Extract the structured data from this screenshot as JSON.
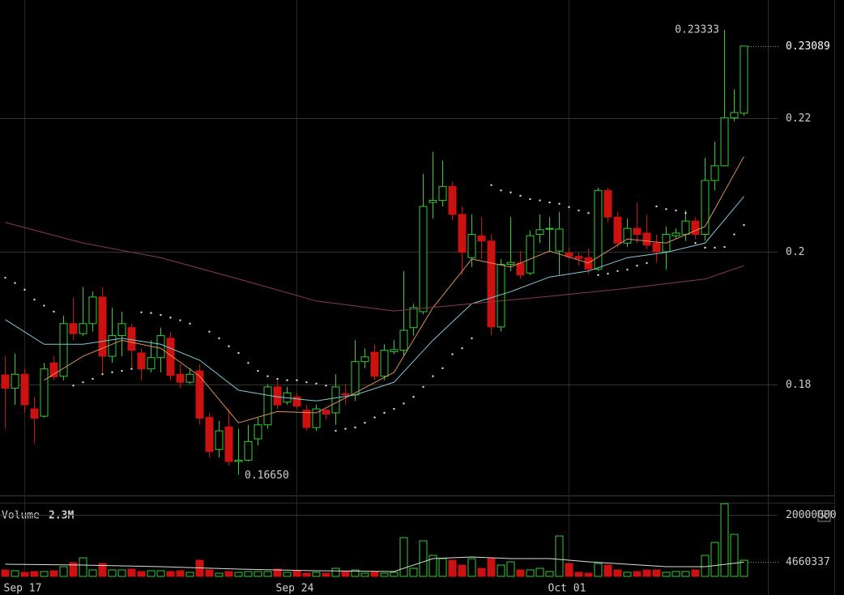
{
  "chart_data": [
    {
      "type": "candlestick",
      "categories": [
        null,
        null,
        "Sep 17",
        null,
        null,
        null,
        null,
        null,
        null,
        null,
        null,
        null,
        null,
        null,
        null,
        null,
        null,
        null,
        null,
        null,
        null,
        null,
        null,
        null,
        null,
        null,
        null,
        null,
        null,
        null,
        "Sep 24",
        null,
        null,
        null,
        null,
        null,
        null,
        null,
        null,
        null,
        null,
        null,
        null,
        null,
        null,
        null,
        null,
        null,
        null,
        null,
        null,
        null,
        null,
        null,
        null,
        null,
        null,
        null,
        "Oct 01",
        null,
        null,
        null,
        null,
        null,
        null,
        null,
        null,
        null,
        null,
        null,
        null,
        null,
        null,
        null,
        null,
        null,
        null
      ],
      "open": [
        0.1815,
        0.1795,
        0.1816,
        0.1764,
        0.1753,
        0.1833,
        0.1813,
        0.1892,
        0.1877,
        0.1892,
        0.1932,
        0.1843,
        0.1874,
        0.1886,
        0.1848,
        0.1824,
        0.1841,
        0.187,
        0.1816,
        0.1804,
        0.1821,
        0.1751,
        0.1703,
        0.1737,
        0.1685,
        0.1687,
        0.1719,
        0.174,
        0.1797,
        0.1774,
        0.1782,
        0.1762,
        0.1736,
        0.1762,
        0.1758,
        0.1787,
        0.1785,
        0.1835,
        0.1849,
        0.1813,
        0.185,
        0.1852,
        0.1886,
        0.191,
        0.2074,
        0.2077,
        0.2098,
        0.2056,
        0.1991,
        0.2024,
        0.2016,
        0.1887,
        0.1981,
        0.1983,
        0.1968,
        0.2026,
        0.2034,
        0.2001,
        0.1998,
        0.1993,
        0.1991,
        0.1974,
        0.2092,
        0.2052,
        0.2013,
        0.2035,
        0.2028,
        0.2013,
        0.2,
        0.2024,
        0.2026,
        0.2046,
        0.2026,
        0.2107,
        0.2129,
        0.2201,
        0.2208
      ],
      "high": [
        0.1843,
        0.1847,
        0.1825,
        0.1782,
        0.1833,
        0.1843,
        0.1904,
        0.1931,
        0.1947,
        0.194,
        0.1947,
        0.1916,
        0.191,
        0.1892,
        0.1855,
        0.1867,
        0.1886,
        0.188,
        0.1831,
        0.1825,
        0.1831,
        0.1758,
        0.1746,
        0.1764,
        0.1734,
        0.174,
        0.1751,
        0.1801,
        0.1807,
        0.1797,
        0.1788,
        0.177,
        0.177,
        0.1764,
        0.1816,
        0.1801,
        0.1867,
        0.1855,
        0.1861,
        0.1861,
        0.1867,
        0.1971,
        0.1922,
        0.2117,
        0.215,
        0.2137,
        0.2105,
        0.2068,
        0.2056,
        0.2052,
        0.2026,
        0.1989,
        0.2052,
        0.2001,
        0.2032,
        0.2056,
        0.2052,
        0.206,
        0.2007,
        0.1999,
        0.2004,
        0.2096,
        0.2096,
        0.206,
        0.205,
        0.2074,
        0.2056,
        0.2026,
        0.2038,
        0.2035,
        0.2062,
        0.2052,
        0.2141,
        0.2165,
        0.23333,
        0.2244,
        0.23089
      ],
      "low": [
        0.1734,
        0.177,
        0.1758,
        0.1712,
        0.1751,
        0.1807,
        0.1807,
        0.1867,
        0.1874,
        0.188,
        0.1816,
        0.1833,
        0.1843,
        0.1825,
        0.1807,
        0.1819,
        0.1819,
        0.1807,
        0.1795,
        0.1801,
        0.174,
        0.1691,
        0.1691,
        0.1679,
        0.1665,
        0.1685,
        0.1709,
        0.1734,
        0.1764,
        0.177,
        0.1764,
        0.1731,
        0.1731,
        0.1748,
        0.174,
        0.177,
        0.1776,
        0.1825,
        0.1807,
        0.1807,
        0.1846,
        0.1843,
        0.1874,
        0.1906,
        0.205,
        0.2068,
        0.2047,
        0.1965,
        0.1977,
        0.1989,
        0.1874,
        0.188,
        0.1971,
        0.1959,
        0.1965,
        0.2013,
        0.2001,
        0.1965,
        0.1989,
        0.1979,
        0.1967,
        0.1971,
        0.2044,
        0.2007,
        0.2007,
        0.2013,
        0.2004,
        0.1983,
        0.1973,
        0.2019,
        0.2016,
        0.2019,
        0.2017,
        0.2092,
        0.2129,
        0.2196,
        0.2204
      ],
      "close": [
        0.1795,
        0.1816,
        0.177,
        0.175,
        0.1824,
        0.1812,
        0.1892,
        0.1877,
        0.1892,
        0.1932,
        0.1843,
        0.1874,
        0.1892,
        0.1852,
        0.1824,
        0.1841,
        0.1874,
        0.1814,
        0.1804,
        0.1816,
        0.175,
        0.17,
        0.1731,
        0.1685,
        0.1687,
        0.1715,
        0.174,
        0.1797,
        0.177,
        0.1788,
        0.1768,
        0.1736,
        0.1764,
        0.1756,
        0.1797,
        0.1785,
        0.1835,
        0.1842,
        0.1813,
        0.1852,
        0.1853,
        0.1882,
        0.1916,
        0.2068,
        0.2077,
        0.2098,
        0.2056,
        0.1999,
        0.2026,
        0.2016,
        0.1887,
        0.1981,
        0.1984,
        0.1965,
        0.2024,
        0.2033,
        0.2035,
        0.2034,
        0.1993,
        0.199,
        0.1974,
        0.2092,
        0.2052,
        0.2013,
        0.2035,
        0.2026,
        0.201,
        0.2,
        0.2026,
        0.2028,
        0.2046,
        0.2026,
        0.2107,
        0.2129,
        0.2201,
        0.2209,
        0.23089
      ],
      "up_color": "#33cc33",
      "down_color": "#cc1111",
      "ylim": [
        0.1634,
        0.2378
      ],
      "yticks": [
        0.18,
        0.2,
        0.22
      ],
      "grid": true,
      "low_label": "0.16650",
      "overlays": [
        {
          "type": "line",
          "color": "#d9905a",
          "x": [
            4,
            8,
            12,
            16,
            20,
            24,
            28,
            32,
            36,
            40,
            44,
            48,
            52,
            56,
            60,
            64,
            68,
            72,
            76
          ],
          "values": [
            0.1807,
            0.1843,
            0.1867,
            0.1855,
            0.1813,
            0.1743,
            0.176,
            0.1758,
            0.1788,
            0.1819,
            0.1916,
            0.1989,
            0.1977,
            0.2001,
            0.1983,
            0.2019,
            0.2013,
            0.2038,
            0.2143
          ]
        },
        {
          "type": "line",
          "color": "#7fc8d8",
          "x": [
            0,
            4,
            8,
            12,
            16,
            20,
            24,
            28,
            32,
            36,
            40,
            44,
            48,
            52,
            56,
            60,
            64,
            68,
            72,
            76
          ],
          "values": [
            0.1898,
            0.1861,
            0.1861,
            0.187,
            0.1861,
            0.1837,
            0.1792,
            0.1782,
            0.1776,
            0.1785,
            0.1804,
            0.1867,
            0.1922,
            0.194,
            0.1962,
            0.1971,
            0.1991,
            0.1999,
            0.2013,
            0.2083
          ]
        },
        {
          "type": "line",
          "color": "#8b3a4a",
          "x": [
            0,
            8,
            16,
            24,
            32,
            40,
            48,
            56,
            64,
            72,
            76
          ],
          "values": [
            0.2044,
            0.2013,
            0.1991,
            0.1959,
            0.1926,
            0.1911,
            0.1922,
            0.1933,
            0.1945,
            0.1959,
            0.1979
          ]
        },
        {
          "type": "dots",
          "color": "#dddddd",
          "x": [
            0,
            1,
            2,
            3,
            4,
            5,
            7,
            8,
            9,
            10,
            11,
            12,
            13,
            14,
            15,
            16,
            17,
            18,
            19,
            21,
            22,
            23,
            24,
            25,
            26,
            27,
            28,
            29,
            30,
            31,
            32,
            33,
            34,
            35,
            36,
            37,
            38,
            39,
            40,
            41,
            42,
            43,
            44,
            45,
            46,
            47,
            48,
            50,
            51,
            52,
            53,
            54,
            55,
            56,
            57,
            58,
            59,
            60,
            61,
            62,
            63,
            64,
            65,
            66,
            67,
            68,
            69,
            70,
            71,
            72,
            73,
            74,
            75,
            76
          ],
          "values": [
            0.1961,
            0.1953,
            0.1943,
            0.1928,
            0.1919,
            0.191,
            0.1799,
            0.1804,
            0.1809,
            0.1816,
            0.1819,
            0.1821,
            0.1824,
            0.1909,
            0.1908,
            0.1905,
            0.1901,
            0.1897,
            0.1892,
            0.188,
            0.187,
            0.1858,
            0.1848,
            0.1833,
            0.1821,
            0.1813,
            0.1809,
            0.1807,
            0.1807,
            0.1804,
            0.1802,
            0.1799,
            0.1731,
            0.1734,
            0.1736,
            0.1743,
            0.1751,
            0.1758,
            0.1764,
            0.1772,
            0.1782,
            0.1797,
            0.1813,
            0.1825,
            0.1846,
            0.1855,
            0.187,
            0.21,
            0.2092,
            0.2089,
            0.2084,
            0.2079,
            0.2077,
            0.2074,
            0.2072,
            0.2067,
            0.2062,
            0.2058,
            0.1965,
            0.1967,
            0.1971,
            0.1973,
            0.1979,
            0.1983,
            0.2068,
            0.2064,
            0.2062,
            0.2058,
            0.2013,
            0.2006,
            0.2006,
            0.2007,
            0.2026,
            0.204
          ]
        }
      ]
    },
    {
      "type": "bar",
      "title": "Volume",
      "subtitle": "2.3M",
      "values": [
        2110000,
        1840000,
        1320000,
        1580000,
        1580000,
        1840000,
        3160000,
        4470000,
        6050000,
        2110000,
        4210000,
        2110000,
        2110000,
        2370000,
        1580000,
        1840000,
        1840000,
        1580000,
        1840000,
        1320000,
        5260000,
        2110000,
        1050000,
        1580000,
        1320000,
        1580000,
        1580000,
        1580000,
        2370000,
        1320000,
        1840000,
        1050000,
        1320000,
        1050000,
        2630000,
        1580000,
        2110000,
        1050000,
        1580000,
        1050000,
        1320000,
        12630000,
        2630000,
        11580000,
        6840000,
        5790000,
        5260000,
        3680000,
        5790000,
        2630000,
        5790000,
        3680000,
        4740000,
        2110000,
        2110000,
        2630000,
        1580000,
        13160000,
        4210000,
        1320000,
        1050000,
        4210000,
        3680000,
        2110000,
        1320000,
        1580000,
        2110000,
        2110000,
        1320000,
        1580000,
        1580000,
        2110000,
        6840000,
        11050000,
        23680000,
        13680000,
        5260000
      ],
      "ylim": [
        0,
        24000000
      ],
      "yticks": [
        20000000
      ],
      "ma": {
        "color": "#dddddd",
        "x": [
          0,
          8,
          16,
          24,
          32,
          40,
          44,
          48,
          52,
          56,
          60,
          64,
          68,
          72,
          76
        ],
        "values": [
          3950000,
          3680000,
          3160000,
          2370000,
          1840000,
          1580000,
          5790000,
          6320000,
          5790000,
          5790000,
          4740000,
          3950000,
          3160000,
          3160000,
          4660337
        ]
      }
    }
  ]
}
